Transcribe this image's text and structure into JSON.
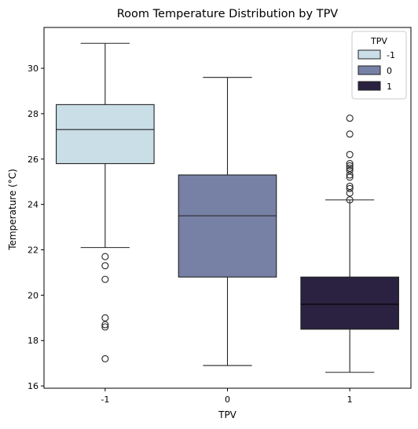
{
  "chart_data": {
    "type": "box",
    "title": "Room Temperature Distribution by TPV",
    "xlabel": "TPV",
    "ylabel": "Temperature (°C)",
    "ylim": [
      15.9,
      31.8
    ],
    "yticks": [
      16,
      18,
      20,
      22,
      24,
      26,
      28,
      30
    ],
    "categories": [
      "-1",
      "0",
      "1"
    ],
    "legend": {
      "title": "TPV",
      "placement": "top-right",
      "entries": [
        "-1",
        "0",
        "1"
      ]
    },
    "series": [
      {
        "category": "-1",
        "color": "#cadee8",
        "min": 22.1,
        "q1": 25.8,
        "median": 27.3,
        "q3": 28.4,
        "max": 31.1,
        "outliers": [
          21.7,
          21.3,
          20.7,
          19.0,
          18.7,
          18.6,
          17.2
        ]
      },
      {
        "category": "0",
        "color": "#7781a6",
        "min": 16.9,
        "q1": 20.8,
        "median": 23.5,
        "q3": 25.3,
        "max": 29.6,
        "outliers": []
      },
      {
        "category": "1",
        "color": "#2a2240",
        "min": 16.6,
        "q1": 18.5,
        "median": 19.6,
        "q3": 20.8,
        "max": 24.2,
        "outliers": [
          24.2,
          24.5,
          24.7,
          24.8,
          25.2,
          25.3,
          25.5,
          25.6,
          25.7,
          25.8,
          26.2,
          27.1,
          27.8
        ]
      }
    ]
  }
}
